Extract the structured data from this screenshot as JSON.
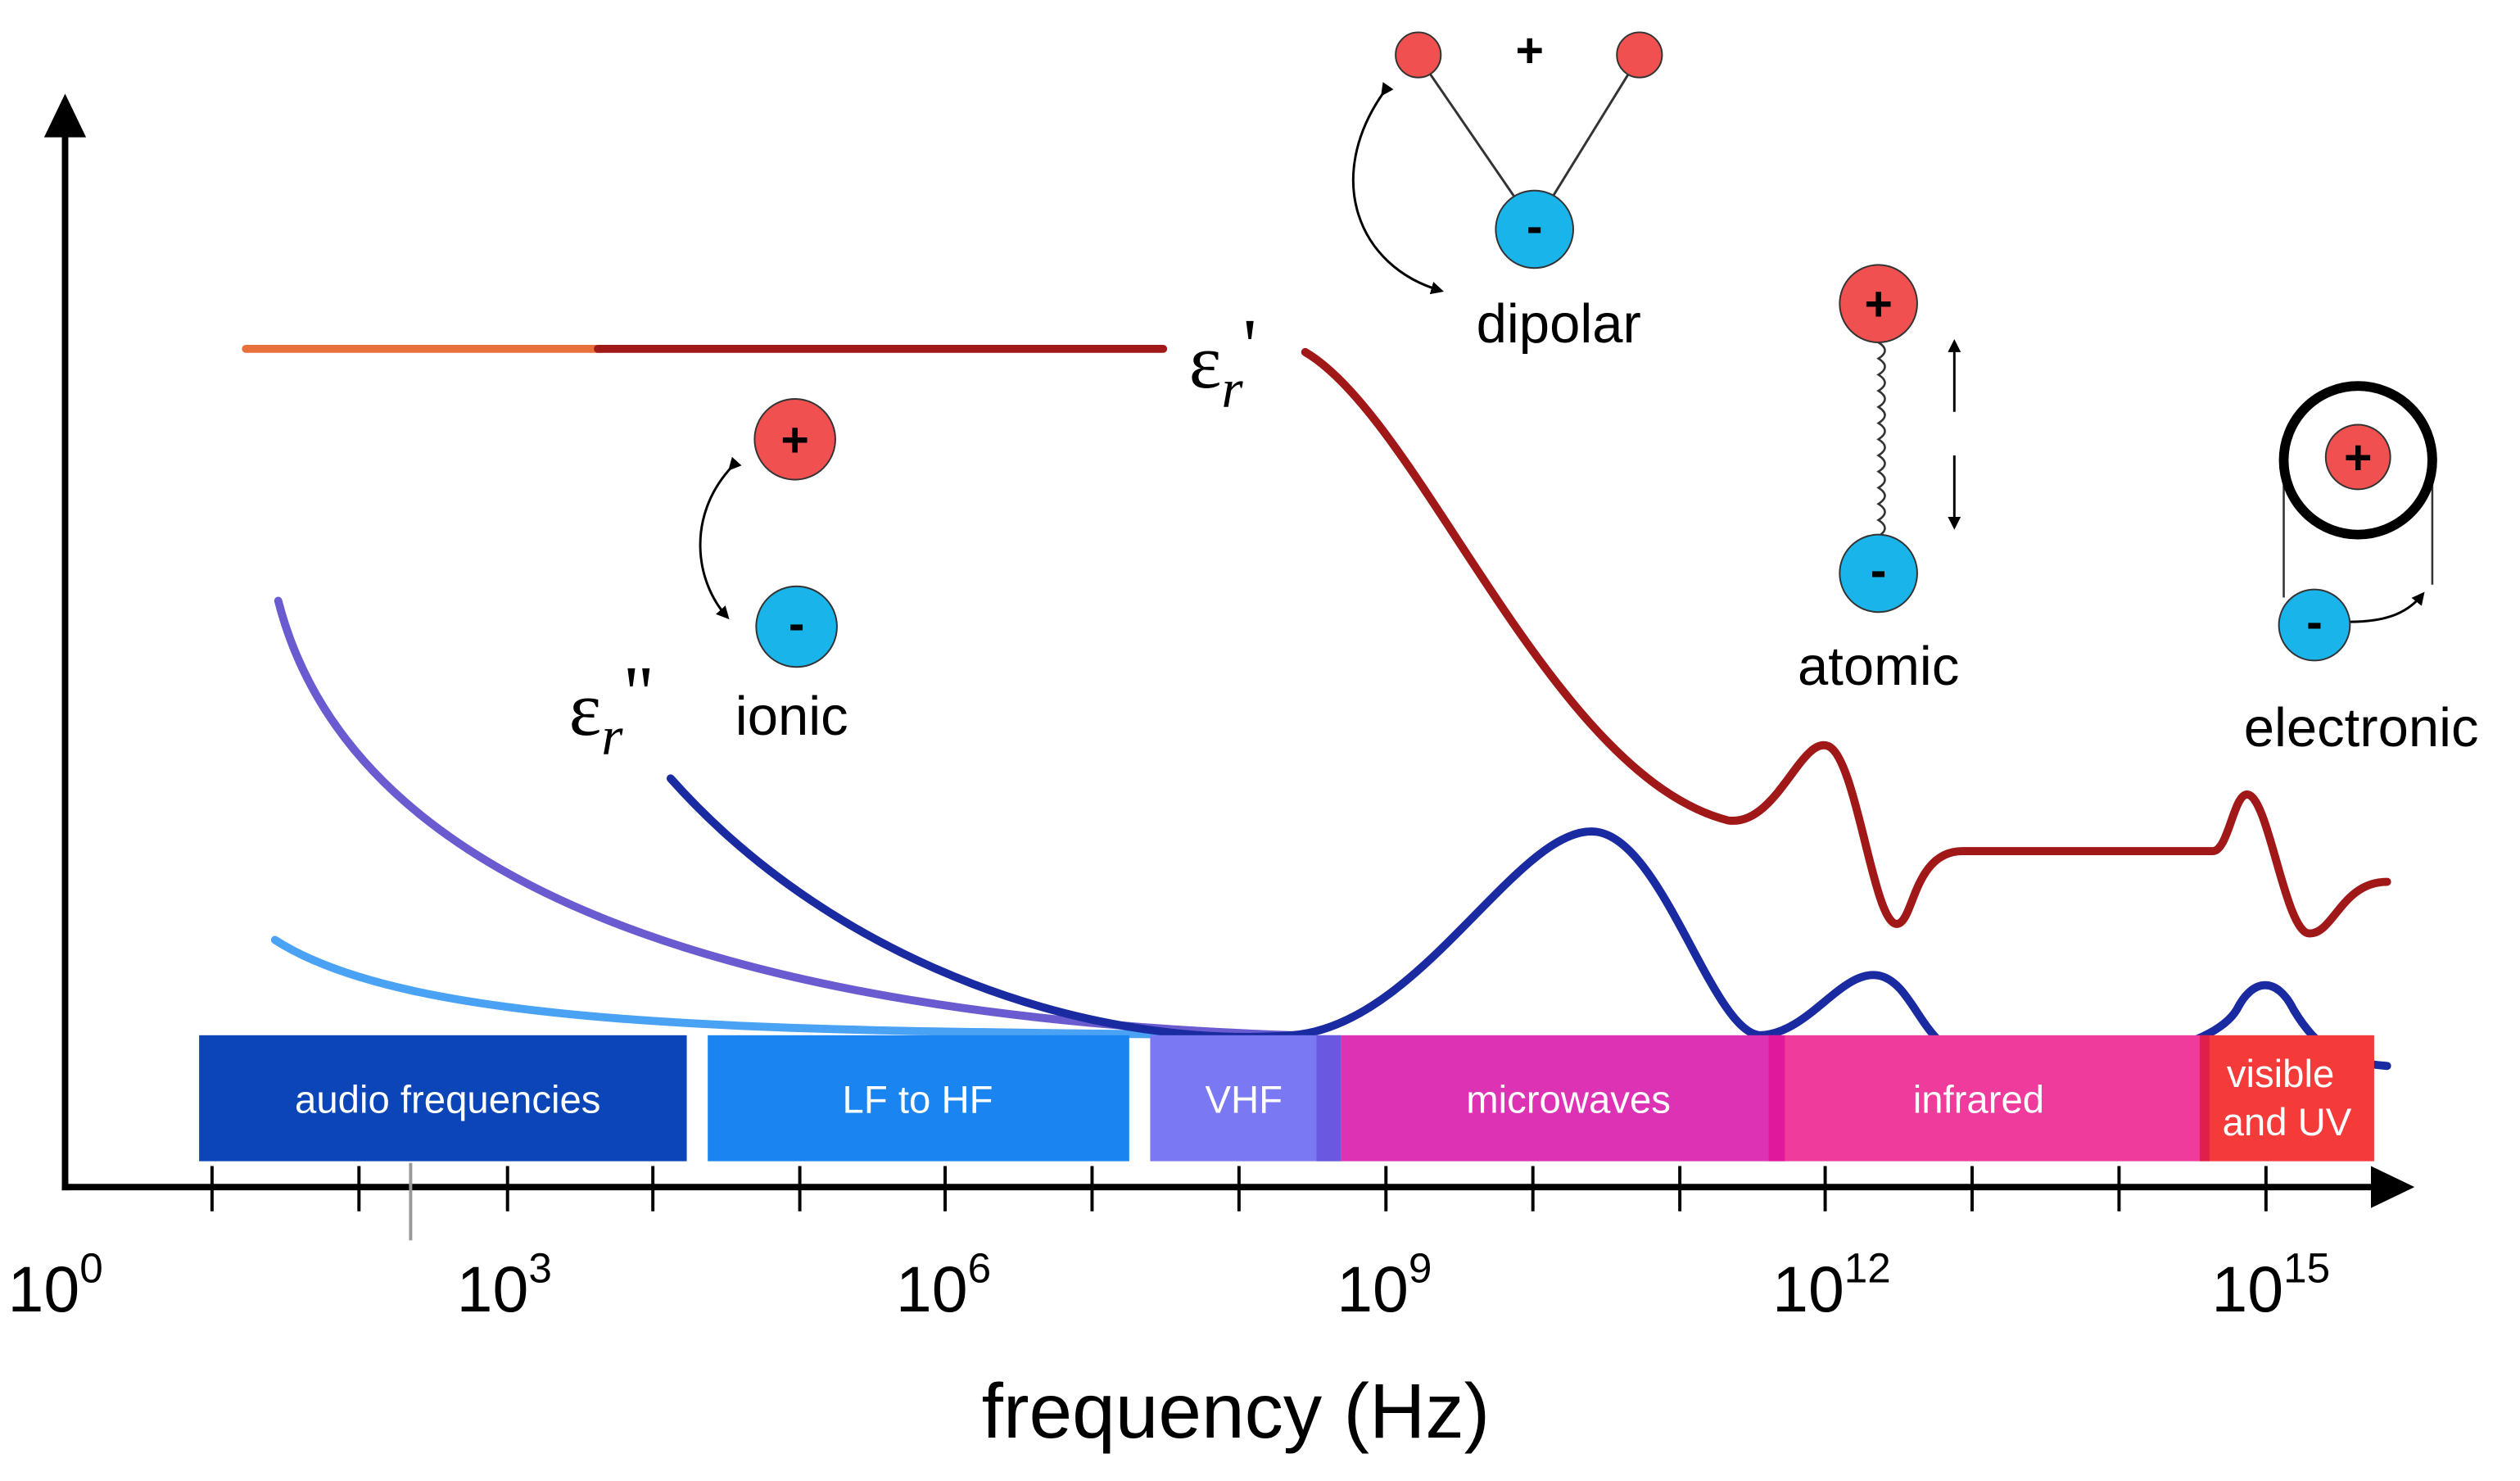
{
  "axis": {
    "label": "frequency (Hz)",
    "ticks": [
      {
        "base": "10",
        "exp": "0"
      },
      {
        "base": "10",
        "exp": "3"
      },
      {
        "base": "10",
        "exp": "6"
      },
      {
        "base": "10",
        "exp": "9"
      },
      {
        "base": "10",
        "exp": "12"
      },
      {
        "base": "10",
        "exp": "15"
      }
    ]
  },
  "bands": [
    {
      "lines": [
        "audio frequencies"
      ]
    },
    {
      "lines": [
        "LF to HF"
      ]
    },
    {
      "lines": [
        "VHF"
      ]
    },
    {
      "lines": [
        "microwaves"
      ]
    },
    {
      "lines": [
        "infrared"
      ]
    },
    {
      "lines": [
        "visible",
        "and UV"
      ]
    }
  ],
  "curves": {
    "real": {
      "symbol": "ε",
      "sub": "r",
      "mark": "'"
    },
    "imaginary": {
      "symbol": "ε",
      "sub": "r",
      "mark": "\""
    }
  },
  "mechanisms": [
    {
      "label": "ionic",
      "charges": [
        "+",
        "-"
      ]
    },
    {
      "label": "dipolar",
      "charges": [
        "+",
        "-"
      ]
    },
    {
      "label": "atomic",
      "charges": [
        "+",
        "-"
      ]
    },
    {
      "label": "electronic",
      "charges": [
        "+",
        "-"
      ]
    }
  ]
}
